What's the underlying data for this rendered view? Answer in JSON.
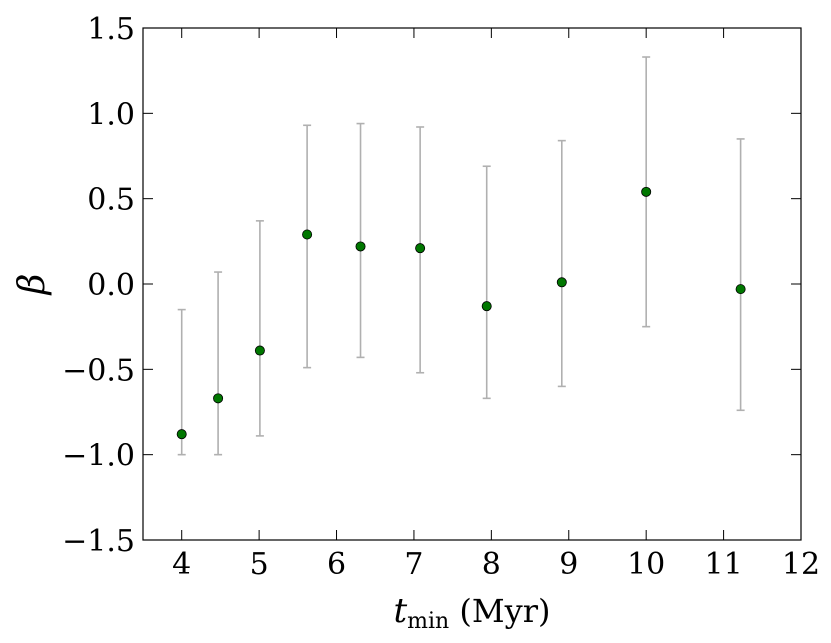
{
  "chart_data": {
    "type": "scatter",
    "title": "",
    "xlabel": "t_min (Myr)",
    "xlabel_main": "t",
    "xlabel_sub": "min",
    "xlabel_unit": " (Myr)",
    "ylabel": "β",
    "xlim": [
      3.5,
      12
    ],
    "ylim": [
      -1.5,
      1.5
    ],
    "xticks": [
      4,
      5,
      6,
      7,
      8,
      9,
      10,
      11,
      12
    ],
    "yticks": [
      -1.5,
      -1.0,
      -0.5,
      0.0,
      0.5,
      1.0,
      1.5
    ],
    "ytick_labels": [
      "−1.5",
      "−1.0",
      "−0.5",
      "0.0",
      "0.5",
      "1.0",
      "1.5"
    ],
    "grid": false,
    "marker_color": "#007700",
    "errorbar_color": "#b0b0b0",
    "points": [
      {
        "x": 4.0,
        "y": -0.88,
        "lo": -1.0,
        "hi": -0.15
      },
      {
        "x": 4.47,
        "y": -0.67,
        "lo": -1.0,
        "hi": 0.07
      },
      {
        "x": 5.01,
        "y": -0.39,
        "lo": -0.89,
        "hi": 0.37
      },
      {
        "x": 5.62,
        "y": 0.29,
        "lo": -0.49,
        "hi": 0.93
      },
      {
        "x": 6.31,
        "y": 0.22,
        "lo": -0.43,
        "hi": 0.94
      },
      {
        "x": 7.08,
        "y": 0.21,
        "lo": -0.52,
        "hi": 0.92
      },
      {
        "x": 7.94,
        "y": -0.13,
        "lo": -0.67,
        "hi": 0.69
      },
      {
        "x": 8.91,
        "y": 0.01,
        "lo": -0.6,
        "hi": 0.84
      },
      {
        "x": 10.0,
        "y": 0.54,
        "lo": -0.25,
        "hi": 1.33
      },
      {
        "x": 11.22,
        "y": -0.03,
        "lo": -0.74,
        "hi": 0.85
      }
    ]
  }
}
